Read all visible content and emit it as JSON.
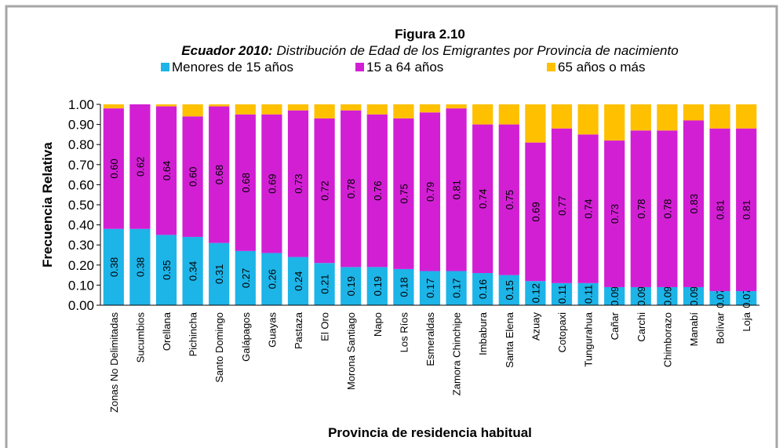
{
  "chart_data": {
    "type": "stacked_bar",
    "title": "Figura 2.10",
    "subtitle_lead": "Ecuador 2010:",
    "subtitle": "Distribución de Edad de los Emigrantes por Provincia de nacimiento",
    "y_label": "Frecuencia Relativa",
    "x_label": "Provincia de residencia habitual",
    "categories": [
      "Zonas No Delimitadas",
      "Sucumbios",
      "Orellana",
      "Pichincha",
      "Santo Domingo",
      "Galápagos",
      "Guayas",
      "Pastaza",
      "El Oro",
      "Morona Santiago",
      "Napo",
      "Los Ríos",
      "Esmeraldas",
      "Zamora Chinchipe",
      "Imbabura",
      "Santa Elena",
      "Azuay",
      "Cotopaxi",
      "Tungurahua",
      "Cañar",
      "Carchi",
      "Chimborazo",
      "Manabí",
      "Bolívar",
      "Loja"
    ],
    "series": [
      {
        "name": "Menores de 15 años",
        "color": "#1db4e8",
        "values": [
          0.38,
          0.38,
          0.35,
          0.34,
          0.31,
          0.27,
          0.26,
          0.24,
          0.21,
          0.19,
          0.19,
          0.18,
          0.17,
          0.17,
          0.16,
          0.15,
          0.12,
          0.11,
          0.11,
          0.09,
          0.09,
          0.09,
          0.09,
          0.07,
          0.07
        ],
        "value_labels": [
          "0.38",
          "0.38",
          "0.35",
          "0.34",
          "0.31",
          "0.27",
          "0.26",
          "0.24",
          "0.21",
          "0.19",
          "0.19",
          "0.18",
          "0.17",
          "0.17",
          "0.16",
          "0.15",
          "0.12",
          "0.11",
          "0.11",
          "0.09",
          "0.09",
          "0.09",
          "0.09",
          "0.07",
          "0.07"
        ]
      },
      {
        "name": "15 a 64 años",
        "color": "#d21fd4",
        "values": [
          0.6,
          0.62,
          0.64,
          0.6,
          0.68,
          0.68,
          0.69,
          0.73,
          0.72,
          0.78,
          0.76,
          0.75,
          0.79,
          0.81,
          0.74,
          0.75,
          0.69,
          0.77,
          0.74,
          0.73,
          0.78,
          0.78,
          0.83,
          0.81,
          0.81
        ],
        "value_labels": [
          "0.60",
          "0.62",
          "0.64",
          "0.60",
          "0.68",
          "0.68",
          "0.69",
          "0.73",
          "0.72",
          "0.78",
          "0.76",
          "0.75",
          "0.79",
          "0.81",
          "0.74",
          "0.75",
          "0.69",
          "0.77",
          "0.74",
          "0.73",
          "0.78",
          "0.78",
          "0.83",
          "0.81",
          "0.81"
        ]
      },
      {
        "name": "65 años o más",
        "color": "#ffc000",
        "values": [
          0.02,
          0.0,
          0.01,
          0.06,
          0.01,
          0.05,
          0.05,
          0.03,
          0.07,
          0.03,
          0.05,
          0.07,
          0.04,
          0.02,
          0.1,
          0.1,
          0.19,
          0.12,
          0.15,
          0.18,
          0.13,
          0.13,
          0.08,
          0.12,
          0.12
        ]
      }
    ],
    "ylim": [
      0,
      1
    ],
    "yticks": [
      {
        "value": 0,
        "label": "0.00"
      },
      {
        "value": 0.1,
        "label": "0.10"
      },
      {
        "value": 0.2,
        "label": "0.20"
      },
      {
        "value": 0.3,
        "label": "0.30"
      },
      {
        "value": 0.4,
        "label": "0.40"
      },
      {
        "value": 0.5,
        "label": "0.50"
      },
      {
        "value": 0.6,
        "label": "0.60"
      },
      {
        "value": 0.7,
        "label": "0.70"
      },
      {
        "value": 0.8,
        "label": "0.80"
      },
      {
        "value": 0.9,
        "label": "0.90"
      },
      {
        "value": 1,
        "label": "1.00"
      }
    ],
    "legend": "top"
  }
}
